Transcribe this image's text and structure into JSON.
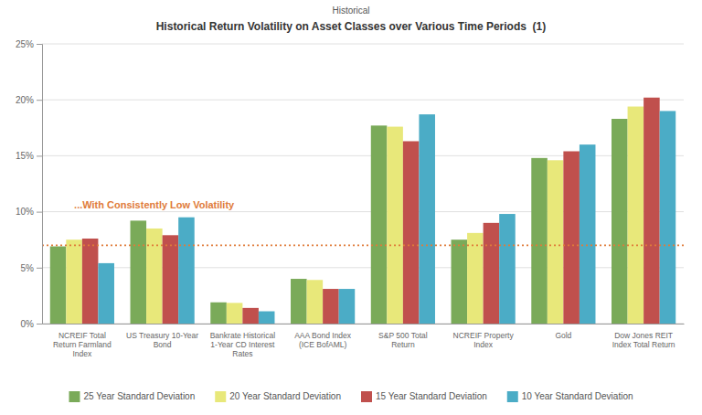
{
  "chart_data": {
    "type": "bar",
    "title": "Historical Return Volatility on Asset Classes over Various Time Periods  (1)",
    "subtitle": "Historical",
    "categories": [
      "NCREIF Total\nReturn Farmland\nIndex",
      "US Treasury 10-Year\nBond",
      "Bankrate Historical\n1-Year CD Interest\nRates",
      "AAA Bond Index\n(ICE BofAML)",
      "S&P 500 Total\nReturn",
      "NCREIF Property\nIndex",
      "Gold",
      "Dow Jones REIT\nIndex Total Return"
    ],
    "series": [
      {
        "name": "25 Year Standard Deviation",
        "color": "#7aaa59",
        "values": [
          6.9,
          9.2,
          1.9,
          4.0,
          17.7,
          7.5,
          14.8,
          18.3
        ]
      },
      {
        "name": "20 Year Standard Deviation",
        "color": "#e8e87a",
        "values": [
          7.5,
          8.5,
          1.85,
          3.9,
          17.6,
          8.1,
          14.6,
          19.4
        ]
      },
      {
        "name": "15 Year Standard Deviation",
        "color": "#c0504d",
        "values": [
          7.6,
          7.9,
          1.4,
          3.1,
          16.3,
          9.0,
          15.4,
          20.2
        ]
      },
      {
        "name": "10 Year Standard Deviation",
        "color": "#4bacc6",
        "values": [
          5.4,
          9.5,
          1.1,
          3.1,
          18.7,
          9.8,
          16.0,
          19.0
        ]
      }
    ],
    "reference_lines": [
      {
        "value": 7.0,
        "color": "#e07b39",
        "line_style": "dotted"
      }
    ],
    "annotations": [
      {
        "text": "...With Consistently Low Volatility",
        "y": 10.5,
        "color": "#e07b39"
      }
    ],
    "ylim": [
      0,
      25
    ],
    "yticks": [
      {
        "value": 0,
        "label": "0%"
      },
      {
        "value": 5,
        "label": "5%"
      },
      {
        "value": 10,
        "label": "10%"
      },
      {
        "value": 15,
        "label": "15%"
      },
      {
        "value": 20,
        "label": "20%"
      },
      {
        "value": 25,
        "label": "25%"
      }
    ],
    "grid": true,
    "legend": "bottom"
  }
}
